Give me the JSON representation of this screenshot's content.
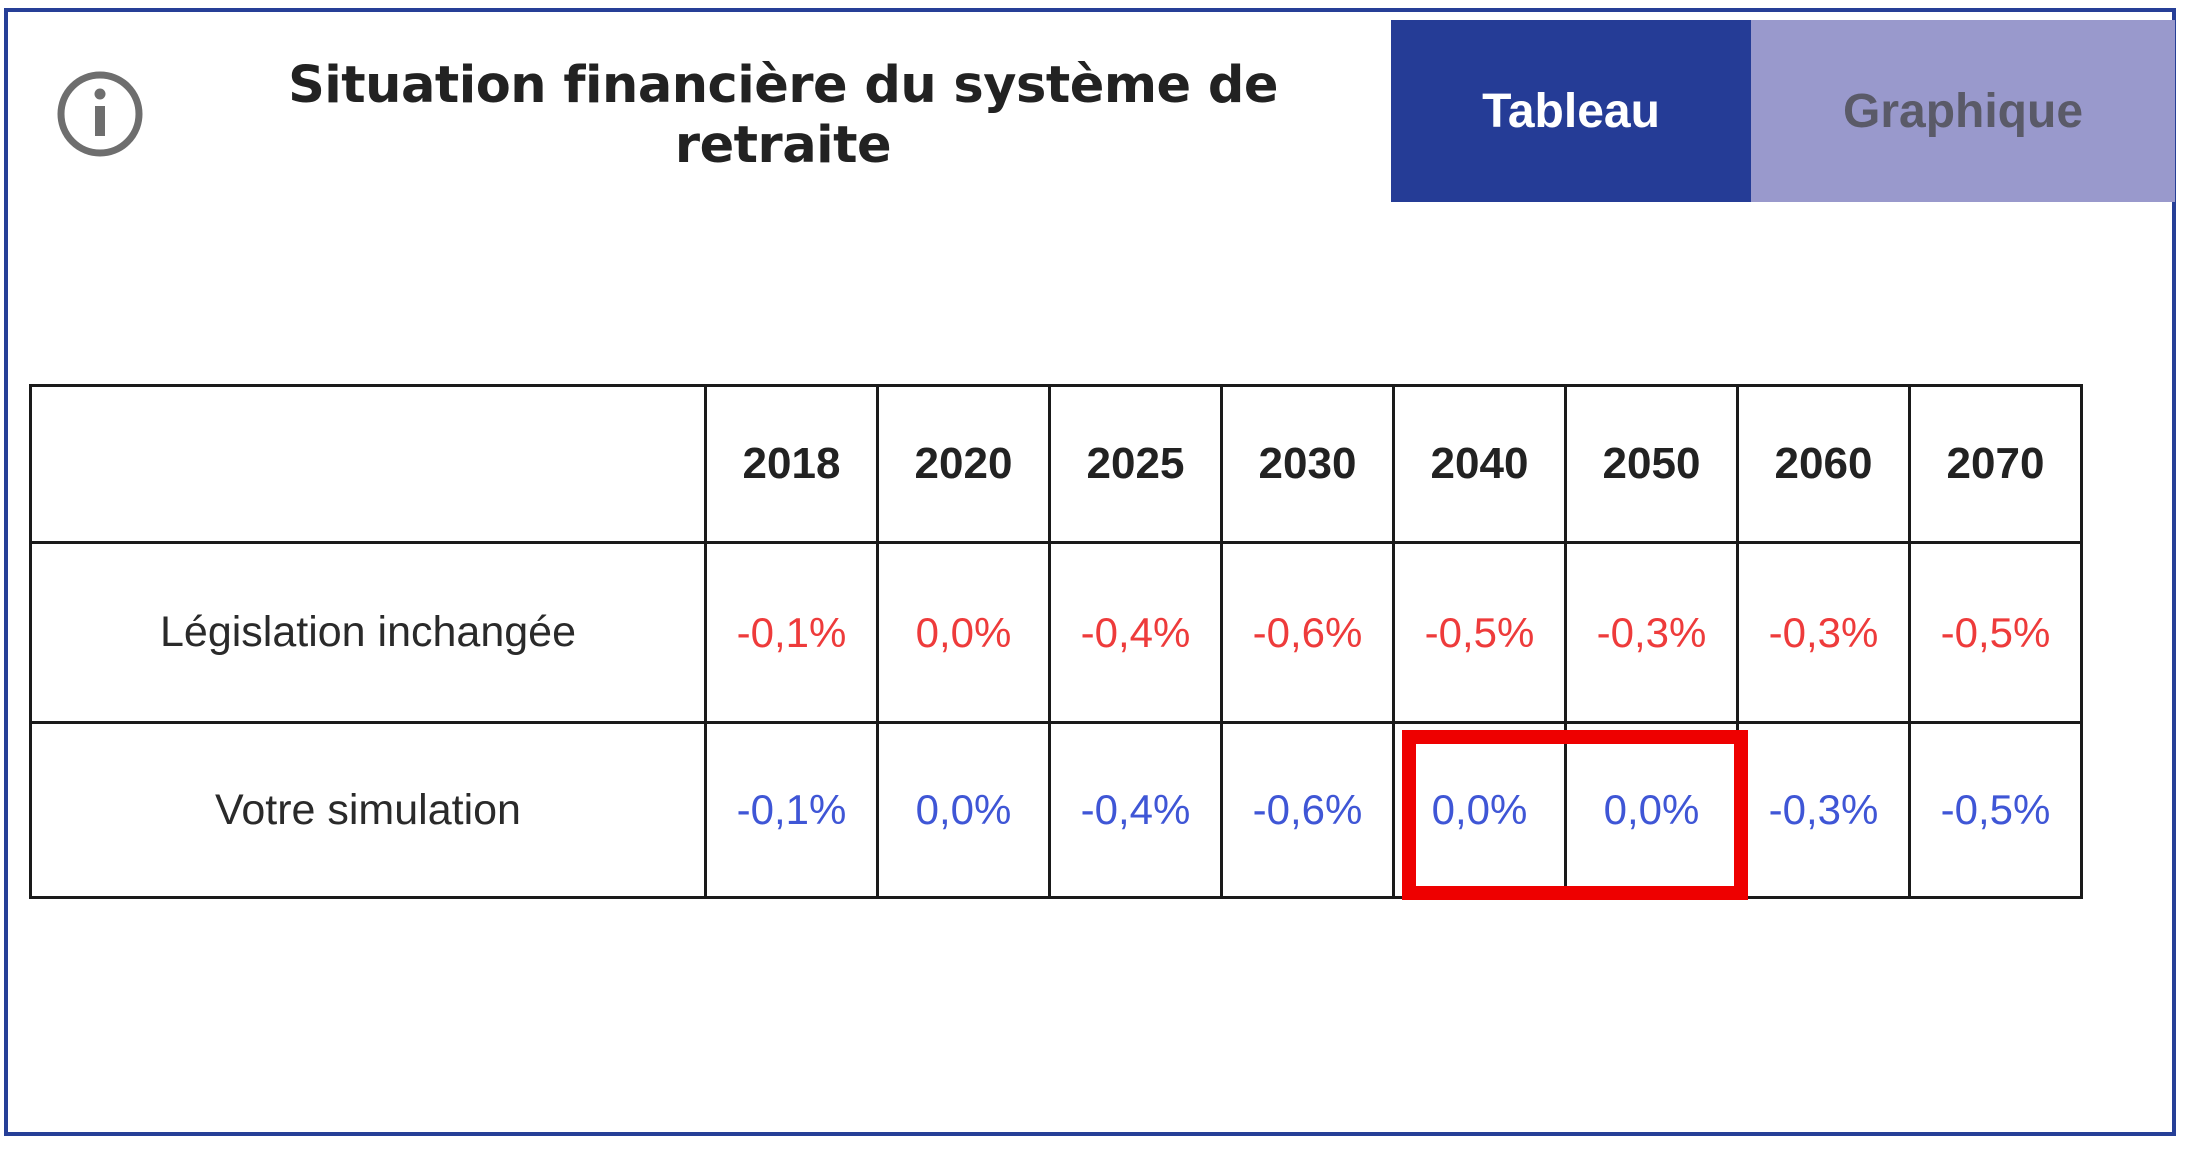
{
  "header": {
    "title": "Situation financière du système de retraite"
  },
  "tabs": [
    {
      "label": "Tableau",
      "active": true
    },
    {
      "label": "Graphique",
      "active": false
    }
  ],
  "table": {
    "years": [
      "2018",
      "2020",
      "2025",
      "2030",
      "2040",
      "2050",
      "2060",
      "2070"
    ],
    "rows": [
      {
        "label": "Législation inchangée",
        "values": [
          "-0,1%",
          "0,0%",
          "-0,4%",
          "-0,6%",
          "-0,5%",
          "-0,3%",
          "-0,3%",
          "-0,5%"
        ]
      },
      {
        "label": "Votre simulation",
        "values": [
          "-0,1%",
          "0,0%",
          "-0,4%",
          "-0,6%",
          "0,0%",
          "0,0%",
          "-0,3%",
          "-0,5%"
        ]
      }
    ]
  },
  "colors": {
    "frame": "#263f97",
    "tab_active_bg": "#253c96",
    "tab_inactive_bg": "#9999cc",
    "legislation_text": "#ee3b3b",
    "simulation_text": "#3f56d6",
    "highlight": "#ee0000"
  }
}
